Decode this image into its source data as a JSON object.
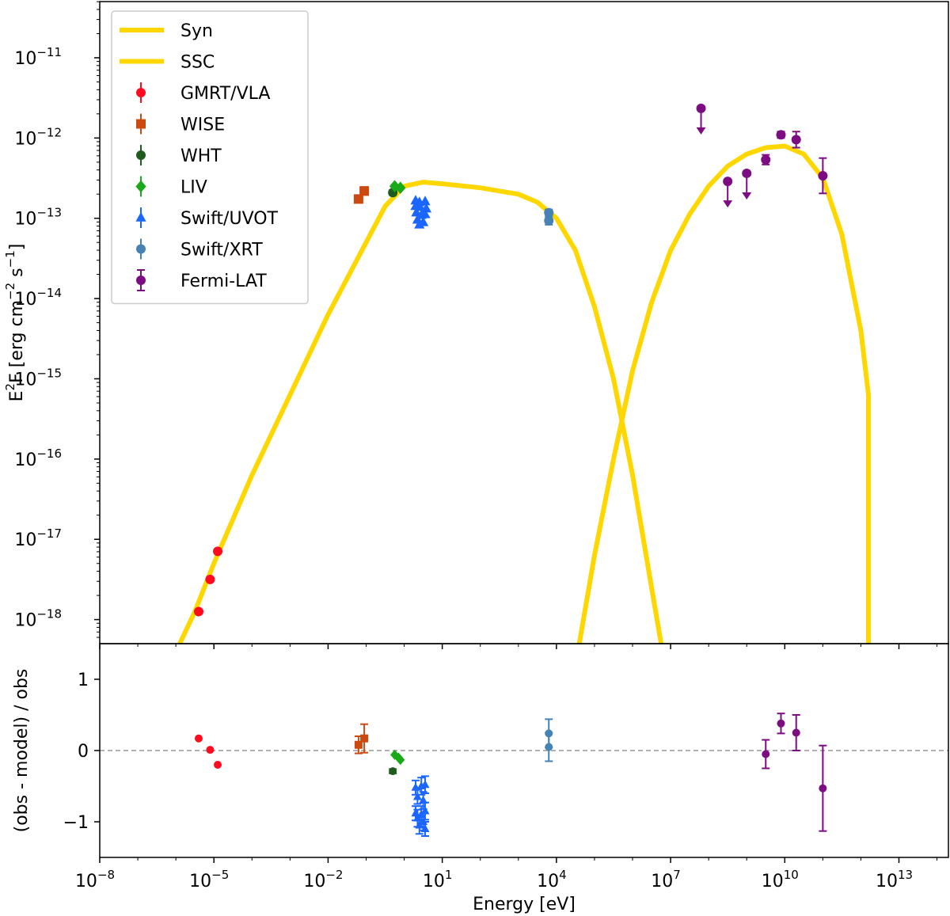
{
  "chart_data": [
    {
      "type": "scatter",
      "panel": "sed",
      "xlabel": "Energy [eV]",
      "ylabel": {
        "prefix": "E",
        "sup1": "2",
        "mid": "F [erg cm",
        "sup2": "−2",
        "mid2": " s",
        "sup3": "−1",
        "suffix": "]"
      },
      "x_scale": "log",
      "y_scale": "log",
      "xlim_exp": [
        -8,
        14.3
      ],
      "ylim_exp": [
        -18.3,
        -10.3
      ],
      "x_ticks": [
        {
          "exp": -8,
          "label": "10",
          "sup": "−8"
        },
        {
          "exp": -5,
          "label": "10",
          "sup": "−5"
        },
        {
          "exp": -2,
          "label": "10",
          "sup": "−2"
        },
        {
          "exp": 1,
          "label": "10",
          "sup": "1"
        },
        {
          "exp": 4,
          "label": "10",
          "sup": "4"
        },
        {
          "exp": 7,
          "label": "10",
          "sup": "7"
        },
        {
          "exp": 10,
          "label": "10",
          "sup": "10"
        },
        {
          "exp": 13,
          "label": "10",
          "sup": "13"
        }
      ],
      "y_ticks": [
        {
          "exp": -18,
          "label": "10",
          "sup": "−18"
        },
        {
          "exp": -17,
          "label": "10",
          "sup": "−17"
        },
        {
          "exp": -16,
          "label": "10",
          "sup": "−16"
        },
        {
          "exp": -15,
          "label": "10",
          "sup": "−15"
        },
        {
          "exp": -14,
          "label": "10",
          "sup": "−14"
        },
        {
          "exp": -13,
          "label": "10",
          "sup": "−13"
        },
        {
          "exp": -12,
          "label": "10",
          "sup": "−12"
        },
        {
          "exp": -11,
          "label": "10",
          "sup": "−11"
        }
      ],
      "legend_position": "top-left",
      "model_curves": [
        {
          "name": "Syn",
          "color": "#FFD700",
          "points_logE_logF": [
            [
              -5.9,
              -18.3
            ],
            [
              -5.5,
              -17.9
            ],
            [
              -5,
              -17.3
            ],
            [
              -4,
              -16.2
            ],
            [
              -3,
              -15.2
            ],
            [
              -2,
              -14.2
            ],
            [
              -1,
              -13.3
            ],
            [
              -0.5,
              -12.85
            ],
            [
              0,
              -12.6
            ],
            [
              0.5,
              -12.55
            ],
            [
              1,
              -12.57
            ],
            [
              2,
              -12.62
            ],
            [
              3,
              -12.7
            ],
            [
              3.5,
              -12.8
            ],
            [
              4,
              -13.0
            ],
            [
              4.5,
              -13.4
            ],
            [
              5,
              -14.1
            ],
            [
              5.5,
              -15.0
            ],
            [
              6,
              -16.2
            ],
            [
              6.5,
              -17.6
            ],
            [
              6.75,
              -18.3
            ]
          ]
        },
        {
          "name": "SSC",
          "color": "#FFD700",
          "points_logE_logF": [
            [
              4.6,
              -18.3
            ],
            [
              5,
              -17.2
            ],
            [
              5.5,
              -16.0
            ],
            [
              6,
              -14.9
            ],
            [
              6.5,
              -14.05
            ],
            [
              7,
              -13.4
            ],
            [
              7.5,
              -12.95
            ],
            [
              8,
              -12.6
            ],
            [
              8.5,
              -12.35
            ],
            [
              9,
              -12.2
            ],
            [
              9.5,
              -12.12
            ],
            [
              10,
              -12.1
            ],
            [
              10.5,
              -12.2
            ],
            [
              11,
              -12.5
            ],
            [
              11.5,
              -13.2
            ],
            [
              12,
              -14.4
            ],
            [
              12.2,
              -15.2
            ],
            [
              12.2,
              -18.3
            ]
          ]
        }
      ],
      "series": [
        {
          "name": "GMRT/VLA",
          "color": "#FF0A1E",
          "marker": "circle",
          "points": [
            {
              "x_exp": -5.4,
              "y_exp": -17.9
            },
            {
              "x_exp": -5.1,
              "y_exp": -17.5
            },
            {
              "x_exp": -4.9,
              "y_exp": -17.15
            }
          ]
        },
        {
          "name": "WISE",
          "color": "#CC4A10",
          "marker": "square",
          "points": [
            {
              "x_exp": -1.2,
              "y_exp": -12.76,
              "err": 0.04
            },
            {
              "x_exp": -1.05,
              "y_exp": -12.66,
              "err": 0.05
            }
          ]
        },
        {
          "name": "WHT",
          "color": "#1E5C1E",
          "marker": "circle",
          "points": [
            {
              "x_exp": -0.3,
              "y_exp": -12.68,
              "err": 0.03
            }
          ]
        },
        {
          "name": "LIV",
          "color": "#18AA18",
          "marker": "diamond",
          "points": [
            {
              "x_exp": -0.25,
              "y_exp": -12.6
            },
            {
              "x_exp": -0.1,
              "y_exp": -12.62
            }
          ]
        },
        {
          "name": "Swift/UVOT",
          "color": "#1A66FF",
          "marker": "triangle",
          "points": [
            {
              "x_exp": 0.3,
              "y_exp": -12.78
            },
            {
              "x_exp": 0.4,
              "y_exp": -12.8
            },
            {
              "x_exp": 0.55,
              "y_exp": -12.79
            },
            {
              "x_exp": 0.3,
              "y_exp": -12.85
            },
            {
              "x_exp": 0.42,
              "y_exp": -12.86
            },
            {
              "x_exp": 0.58,
              "y_exp": -12.88
            },
            {
              "x_exp": 0.32,
              "y_exp": -12.93
            },
            {
              "x_exp": 0.45,
              "y_exp": -12.96
            },
            {
              "x_exp": 0.55,
              "y_exp": -12.95
            },
            {
              "x_exp": 0.35,
              "y_exp": -13.02
            },
            {
              "x_exp": 0.5,
              "y_exp": -13.05
            },
            {
              "x_exp": 0.4,
              "y_exp": -13.08
            }
          ]
        },
        {
          "name": "Swift/XRT",
          "color": "#4682B4",
          "marker": "circle",
          "points": [
            {
              "x_exp": 3.8,
              "y_exp": -12.93,
              "err": 0.04
            },
            {
              "x_exp": 3.8,
              "y_exp": -13.03,
              "err": 0.05
            }
          ]
        },
        {
          "name": "Fermi-LAT",
          "color": "#7B0C82",
          "marker": "circle",
          "points": [
            {
              "x_exp": 7.8,
              "y_exp": -11.63,
              "ul": true
            },
            {
              "x_exp": 8.5,
              "y_exp": -12.54,
              "ul": true
            },
            {
              "x_exp": 9,
              "y_exp": -12.44,
              "ul": true
            },
            {
              "x_exp": 9.5,
              "y_exp": -12.27,
              "err": 0.06
            },
            {
              "x_exp": 9.9,
              "y_exp": -11.96,
              "err": 0.04
            },
            {
              "x_exp": 10.3,
              "y_exp": -12.02,
              "err": 0.1
            },
            {
              "x_exp": 11.0,
              "y_exp": -12.47,
              "err": 0.22
            }
          ]
        }
      ]
    },
    {
      "type": "scatter",
      "panel": "residuals",
      "xlabel": "Energy [eV]",
      "ylabel": "(obs - model) / obs",
      "ylim": [
        -1.5,
        1.5
      ],
      "y_ticks": [
        {
          "value": 1,
          "label": "1"
        },
        {
          "value": 0,
          "label": "0"
        },
        {
          "value": -1,
          "label": "−1"
        }
      ],
      "reference_line": 0,
      "series": [
        {
          "name": "GMRT/VLA",
          "points": [
            {
              "x_exp": -5.4,
              "y": 0.17
            },
            {
              "x_exp": -5.1,
              "y": 0.01
            },
            {
              "x_exp": -4.9,
              "y": -0.2
            }
          ]
        },
        {
          "name": "WISE",
          "points": [
            {
              "x_exp": -1.2,
              "y": 0.08,
              "err": 0.12
            },
            {
              "x_exp": -1.05,
              "y": 0.17,
              "err": 0.2
            }
          ]
        },
        {
          "name": "WHT",
          "points": [
            {
              "x_exp": -0.3,
              "y": -0.29,
              "err": 0.03
            }
          ]
        },
        {
          "name": "LIV",
          "points": [
            {
              "x_exp": -0.25,
              "y": -0.06
            },
            {
              "x_exp": -0.15,
              "y": -0.1
            },
            {
              "x_exp": -0.1,
              "y": -0.13
            }
          ]
        },
        {
          "name": "Swift/UVOT",
          "points": [
            {
              "x_exp": 0.3,
              "y": -0.52,
              "err": 0.1
            },
            {
              "x_exp": 0.45,
              "y": -0.5,
              "err": 0.12
            },
            {
              "x_exp": 0.55,
              "y": -0.48,
              "err": 0.12
            },
            {
              "x_exp": 0.35,
              "y": -0.65,
              "err": 0.1
            },
            {
              "x_exp": 0.5,
              "y": -0.7,
              "err": 0.12
            },
            {
              "x_exp": 0.3,
              "y": -0.88,
              "err": 0.1
            },
            {
              "x_exp": 0.45,
              "y": -0.9,
              "err": 0.12
            },
            {
              "x_exp": 0.55,
              "y": -0.85,
              "err": 0.12
            },
            {
              "x_exp": 0.35,
              "y": -0.95,
              "err": 0.12
            },
            {
              "x_exp": 0.5,
              "y": -1.0,
              "err": 0.12
            },
            {
              "x_exp": 0.4,
              "y": -1.05,
              "err": 0.12
            },
            {
              "x_exp": 0.55,
              "y": -1.1,
              "err": 0.1
            }
          ]
        },
        {
          "name": "Swift/XRT",
          "points": [
            {
              "x_exp": 3.8,
              "y": 0.24,
              "err": 0.2
            },
            {
              "x_exp": 3.8,
              "y": 0.05,
              "err": 0.2
            }
          ]
        },
        {
          "name": "Fermi-LAT",
          "points": [
            {
              "x_exp": 9.5,
              "y": -0.05,
              "err": 0.2
            },
            {
              "x_exp": 9.9,
              "y": 0.38,
              "err": 0.14
            },
            {
              "x_exp": 10.3,
              "y": 0.25,
              "err": 0.25
            },
            {
              "x_exp": 11.0,
              "y": -0.53,
              "err": 0.6
            }
          ]
        }
      ]
    }
  ]
}
